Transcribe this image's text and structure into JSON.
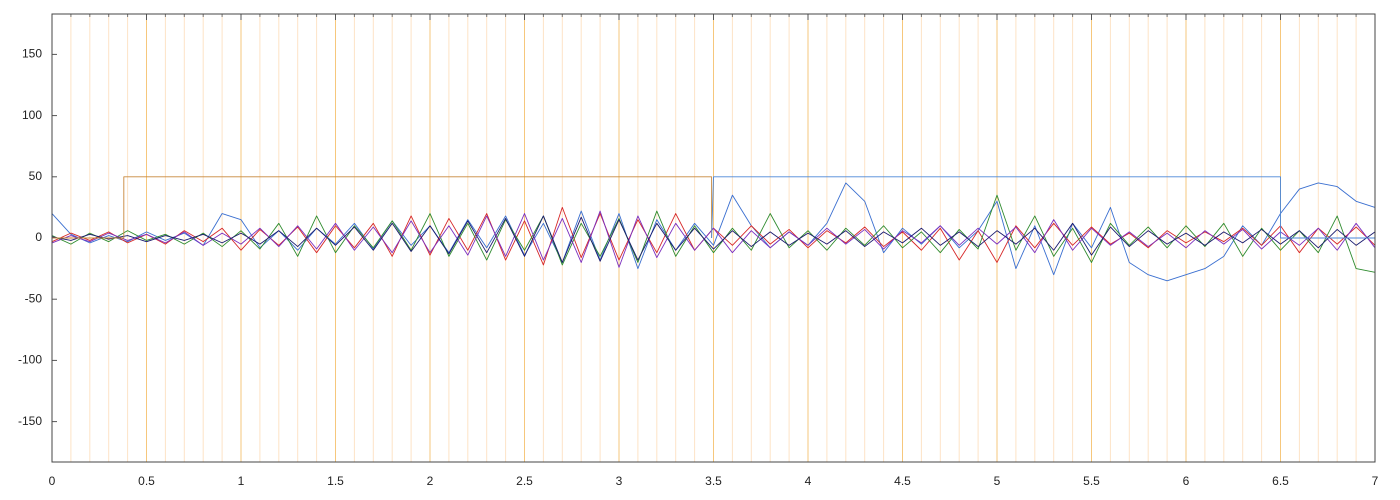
{
  "chart_data": {
    "type": "line",
    "xlim": [
      0,
      7
    ],
    "ylim": [
      -183,
      183
    ],
    "xticks": [
      0,
      0.5,
      1,
      1.5,
      2,
      2.5,
      3,
      3.5,
      4,
      4.5,
      5,
      5.5,
      6,
      6.5,
      7
    ],
    "yticks": [
      -150,
      -100,
      -50,
      0,
      50,
      100,
      150
    ],
    "grid": true,
    "minor_grid": true,
    "x": [
      0,
      0.1,
      0.2,
      0.3,
      0.4,
      0.5,
      0.6,
      0.7,
      0.8,
      0.9,
      1,
      1.1,
      1.2,
      1.3,
      1.4,
      1.5,
      1.6,
      1.7,
      1.8,
      1.9,
      2,
      2.1,
      2.2,
      2.3,
      2.4,
      2.5,
      2.6,
      2.7,
      2.8,
      2.9,
      3,
      3.1,
      3.2,
      3.3,
      3.4,
      3.5,
      3.6,
      3.7,
      3.8,
      3.9,
      4,
      4.1,
      4.2,
      4.3,
      4.4,
      4.5,
      4.6,
      4.7,
      4.8,
      4.9,
      5,
      5.1,
      5.2,
      5.3,
      5.4,
      5.5,
      5.6,
      5.7,
      5.8,
      5.9,
      6,
      6.1,
      6.2,
      6.3,
      6.4,
      6.5,
      6.6,
      6.7,
      6.8,
      6.9,
      7
    ],
    "series": [
      {
        "color": "#3a6fd0",
        "values": [
          20,
          3,
          -4,
          2,
          -3,
          5,
          -2,
          4,
          -6,
          20,
          15,
          -8,
          6,
          -10,
          8,
          -5,
          12,
          -9,
          14,
          -6,
          10,
          -12,
          15,
          -8,
          18,
          -14,
          12,
          -20,
          22,
          -18,
          20,
          -25,
          15,
          -10,
          12,
          -6,
          35,
          10,
          -8,
          5,
          -6,
          12,
          45,
          30,
          -12,
          8,
          -5,
          10,
          -8,
          6,
          30,
          -25,
          10,
          -30,
          12,
          -8,
          25,
          -20,
          -30,
          -35,
          -30,
          -25,
          -15,
          10,
          -6,
          20,
          40,
          45,
          42,
          30,
          25
        ]
      },
      {
        "color": "#d62728",
        "values": [
          -3,
          4,
          -2,
          5,
          -4,
          3,
          -5,
          6,
          -3,
          8,
          -10,
          7,
          -6,
          9,
          -12,
          10,
          -8,
          12,
          -15,
          18,
          -14,
          16,
          -10,
          20,
          -18,
          14,
          -22,
          25,
          -16,
          20,
          -18,
          15,
          -12,
          20,
          -10,
          8,
          -6,
          10,
          -5,
          7,
          -8,
          6,
          -4,
          9,
          -7,
          5,
          -10,
          8,
          -18,
          6,
          -20,
          10,
          -8,
          12,
          -6,
          9,
          -5,
          4,
          -8,
          6,
          -4,
          5,
          -3,
          8,
          -6,
          10,
          -12,
          8,
          -5,
          9,
          -6
        ]
      },
      {
        "color": "#2e8b2e",
        "values": [
          2,
          -5,
          4,
          -3,
          6,
          -2,
          3,
          -5,
          4,
          -7,
          6,
          -9,
          12,
          -15,
          18,
          -12,
          10,
          -8,
          14,
          -10,
          20,
          -15,
          12,
          -18,
          15,
          -10,
          18,
          -22,
          12,
          -15,
          16,
          -20,
          22,
          -15,
          10,
          -12,
          8,
          -10,
          20,
          -8,
          6,
          -10,
          8,
          -6,
          10,
          -8,
          5,
          -12,
          7,
          -9,
          35,
          -10,
          18,
          -15,
          8,
          -20,
          12,
          -6,
          9,
          -8,
          10,
          -7,
          12,
          -15,
          8,
          -10,
          6,
          -12,
          18,
          -25,
          -28
        ]
      },
      {
        "color": "#7b2fbf",
        "values": [
          -4,
          2,
          -3,
          4,
          -2,
          3,
          -4,
          5,
          -6,
          4,
          -5,
          8,
          -7,
          10,
          -9,
          12,
          -10,
          9,
          -12,
          14,
          -12,
          10,
          -14,
          18,
          -15,
          20,
          -18,
          16,
          -20,
          22,
          -24,
          18,
          -16,
          12,
          -10,
          8,
          -12,
          6,
          -8,
          5,
          -6,
          8,
          -5,
          7,
          -9,
          6,
          -4,
          10,
          -6,
          8,
          -5,
          9,
          -12,
          15,
          -10,
          8,
          -6,
          5,
          -7,
          4,
          -8,
          6,
          -5,
          7,
          -9,
          5,
          -6,
          8,
          -10,
          12,
          -8
        ]
      },
      {
        "color": "#1a1a6e",
        "values": [
          1,
          -2,
          3,
          -1,
          2,
          -3,
          2,
          -2,
          3,
          -4,
          4,
          -5,
          6,
          -7,
          8,
          -6,
          9,
          -10,
          12,
          -11,
          10,
          -13,
          14,
          -12,
          16,
          -15,
          18,
          -20,
          17,
          -19,
          15,
          -18,
          12,
          -10,
          8,
          -9,
          6,
          -7,
          5,
          -6,
          4,
          -5,
          6,
          -7,
          5,
          -4,
          8,
          -6,
          5,
          -7,
          6,
          -5,
          8,
          -10,
          12,
          -14,
          9,
          -7,
          6,
          -5,
          4,
          -6,
          5,
          -4,
          7,
          -5,
          6,
          -8,
          7,
          -6,
          5
        ]
      },
      {
        "color": "#c8873a",
        "x": [
          0,
          0.38,
          0.38,
          3.49,
          3.49
        ],
        "values": [
          0,
          0,
          50,
          50,
          0
        ]
      },
      {
        "color": "#4a86d8",
        "x": [
          3.49,
          3.5,
          6.5,
          6.5,
          7
        ],
        "values": [
          0,
          50,
          50,
          0,
          0
        ]
      }
    ]
  }
}
